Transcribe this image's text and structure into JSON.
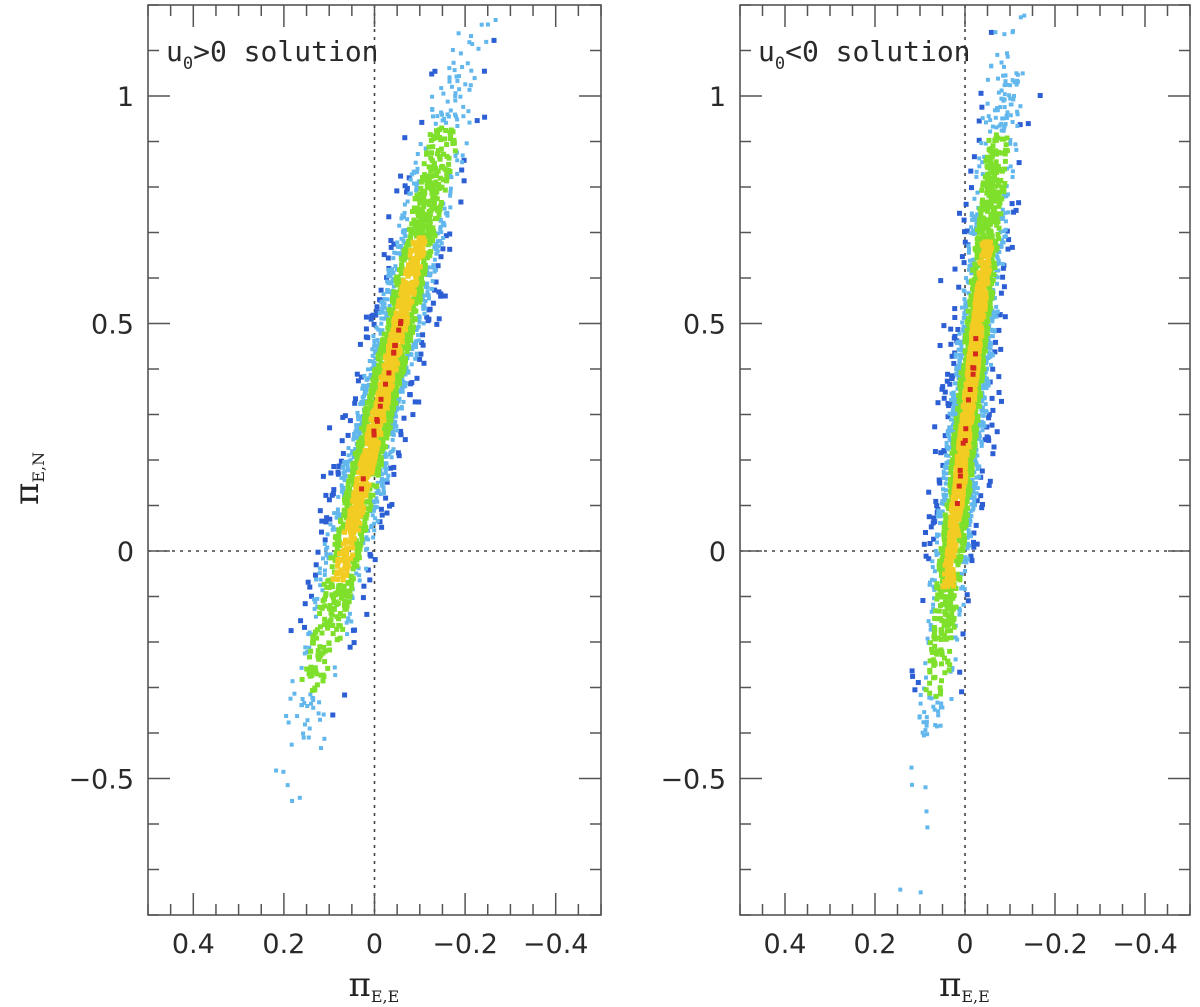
{
  "chart_data": [
    {
      "type": "scatter",
      "panel_label": "solution",
      "u0_sign": ">",
      "xlabel": "π",
      "xlabel_sub": "E,E",
      "ylabel": "π",
      "ylabel_sub": "E,N",
      "xlim": [
        0.5,
        -0.5
      ],
      "ylim": [
        -0.8,
        1.2
      ],
      "x_ticks": [
        "0.4",
        "0.2",
        "0",
        "−0.2",
        "−0.4"
      ],
      "y_ticks": [
        "−0.5",
        "0",
        "0.5",
        "1"
      ],
      "reference_lines": {
        "x": 0,
        "y": 0,
        "style": "dotted"
      },
      "grid": false,
      "distribution": {
        "slope": 4.23,
        "intercept": 0.26,
        "y_range": [
          -0.68,
          1.18
        ],
        "x_spread_sd": 0.028
      },
      "color_levels": [
        "#2d5fd4",
        "#62b7ec",
        "#7fe02c",
        "#f2cc22",
        "#d42a1e"
      ],
      "seed": 11
    },
    {
      "type": "scatter",
      "panel_label": "solution",
      "u0_sign": "<",
      "xlabel": "π",
      "xlabel_sub": "E,E",
      "ylabel": "",
      "ylabel_sub": "",
      "xlim": [
        0.5,
        -0.5
      ],
      "ylim": [
        -0.8,
        1.2
      ],
      "x_ticks": [
        "0.4",
        "0.2",
        "0",
        "−0.2",
        "−0.4"
      ],
      "y_ticks": [
        "−0.5",
        "0",
        "0.5",
        "1"
      ],
      "reference_lines": {
        "x": 0,
        "y": 0,
        "style": "dotted"
      },
      "grid": false,
      "distribution": {
        "slope": 8.7,
        "intercept": 0.25,
        "y_range": [
          -0.8,
          1.18
        ],
        "x_spread_sd": 0.022
      },
      "color_levels": [
        "#2d5fd4",
        "#62b7ec",
        "#7fe02c",
        "#f2cc22",
        "#d42a1e"
      ],
      "seed": 29
    }
  ]
}
